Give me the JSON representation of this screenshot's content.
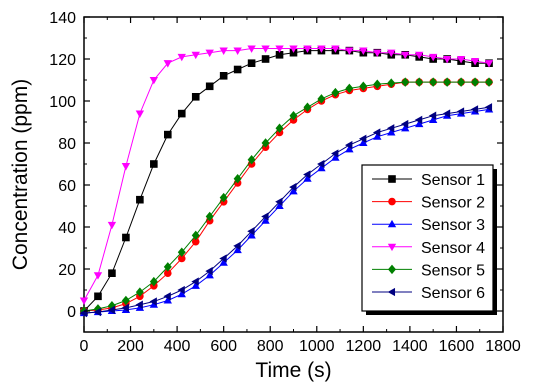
{
  "chart_data": {
    "type": "line",
    "title": "",
    "xlabel": "Time (s)",
    "ylabel": "Concentration (ppm)",
    "xlim": [
      0,
      1800
    ],
    "ylim": [
      -10,
      140
    ],
    "xticks": [
      0,
      200,
      400,
      600,
      800,
      1000,
      1200,
      1400,
      1600,
      1800
    ],
    "yticks": [
      0,
      20,
      40,
      60,
      80,
      100,
      120,
      140
    ],
    "grid": false,
    "legend_position": "bottom-right",
    "x": [
      0,
      60,
      120,
      180,
      240,
      300,
      360,
      420,
      480,
      540,
      600,
      660,
      720,
      780,
      840,
      900,
      960,
      1020,
      1080,
      1140,
      1200,
      1260,
      1320,
      1380,
      1440,
      1500,
      1560,
      1620,
      1680,
      1740
    ],
    "series": [
      {
        "name": "Sensor 1",
        "color": "#000000",
        "marker": "square",
        "values": [
          0,
          7,
          18,
          35,
          53,
          70,
          84,
          94,
          102,
          107,
          112,
          115,
          118,
          120,
          122,
          123,
          124,
          124,
          124,
          124,
          123,
          123,
          122,
          122,
          121,
          120,
          120,
          119,
          118,
          118
        ]
      },
      {
        "name": "Sensor 2",
        "color": "#ff0000",
        "marker": "circle",
        "values": [
          0,
          0.5,
          1.5,
          3.5,
          7,
          12,
          18,
          25,
          33,
          43,
          52,
          61,
          70,
          78,
          85,
          91,
          96,
          100,
          103,
          105,
          106,
          107,
          108,
          109,
          109,
          109,
          109,
          109,
          109,
          109
        ]
      },
      {
        "name": "Sensor 3",
        "color": "#0000ff",
        "marker": "triangle-up",
        "values": [
          -1,
          -0.5,
          0,
          0.5,
          1.5,
          3,
          5,
          8,
          12,
          17,
          23,
          29,
          36,
          43,
          50,
          57,
          63,
          68,
          73,
          77,
          80,
          83,
          85,
          87,
          89,
          91,
          93,
          94,
          95,
          96
        ]
      },
      {
        "name": "Sensor 4",
        "color": "#ff00ff",
        "marker": "triangle-down",
        "values": [
          5,
          17,
          41,
          69,
          94,
          110,
          118,
          121,
          122,
          123,
          124,
          124,
          125,
          125,
          125,
          125,
          125,
          125,
          125,
          124,
          124,
          123,
          123,
          122,
          122,
          121,
          120,
          120,
          119,
          118
        ]
      },
      {
        "name": "Sensor 5",
        "color": "#008000",
        "marker": "diamond",
        "values": [
          0,
          1,
          2.5,
          5,
          9,
          14,
          21,
          28,
          36,
          45,
          54,
          63,
          72,
          80,
          87,
          93,
          97,
          101,
          104,
          106,
          107,
          108,
          108.5,
          109,
          109,
          109,
          109,
          109,
          109,
          109
        ]
      },
      {
        "name": "Sensor 6",
        "color": "#000080",
        "marker": "triangle-left",
        "values": [
          -1,
          -0.5,
          0.5,
          1.5,
          3,
          4.5,
          7,
          10,
          14,
          19,
          25,
          31,
          38,
          45,
          52,
          59,
          65,
          70,
          75,
          79,
          82,
          85,
          87,
          89,
          91,
          93,
          94,
          95,
          96,
          97
        ]
      }
    ]
  }
}
